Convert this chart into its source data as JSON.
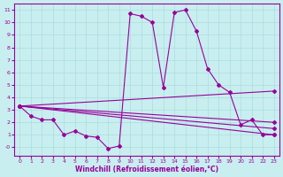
{
  "xlabel": "Windchill (Refroidissement éolien,°C)",
  "background_color": "#c8eef0",
  "line_color": "#990099",
  "grid_color": "#aadddd",
  "xlim": [
    -0.5,
    23.5
  ],
  "ylim": [
    -0.7,
    11.5
  ],
  "line1_x": [
    0,
    1,
    2,
    3,
    4,
    5,
    6,
    7,
    8,
    9,
    10,
    11,
    12,
    13,
    14,
    15,
    16,
    17,
    18,
    19,
    20,
    21,
    22,
    23
  ],
  "line1_y": [
    3.3,
    2.5,
    2.2,
    2.2,
    1.0,
    1.3,
    0.9,
    0.8,
    -0.1,
    0.1,
    10.7,
    10.5,
    10.0,
    4.8,
    10.8,
    11.0,
    9.3,
    6.3,
    5.0,
    4.4,
    1.8,
    2.2,
    1.0,
    1.0
  ],
  "line2_x": [
    0,
    23
  ],
  "line2_y": [
    3.3,
    1.0
  ],
  "line3_x": [
    0,
    23
  ],
  "line3_y": [
    3.3,
    1.5
  ],
  "line4_x": [
    0,
    23
  ],
  "line4_y": [
    3.3,
    2.0
  ],
  "line5_x": [
    0,
    23
  ],
  "line5_y": [
    3.3,
    4.5
  ],
  "ytick_labels": [
    "-0",
    "1",
    "2",
    "3",
    "4",
    "5",
    "6",
    "7",
    "8",
    "9",
    "10",
    "11"
  ],
  "ytick_vals": [
    0,
    1,
    2,
    3,
    4,
    5,
    6,
    7,
    8,
    9,
    10,
    11
  ],
  "xticks": [
    0,
    1,
    2,
    3,
    4,
    5,
    6,
    7,
    8,
    9,
    10,
    11,
    12,
    13,
    14,
    15,
    16,
    17,
    18,
    19,
    20,
    21,
    22,
    23
  ]
}
